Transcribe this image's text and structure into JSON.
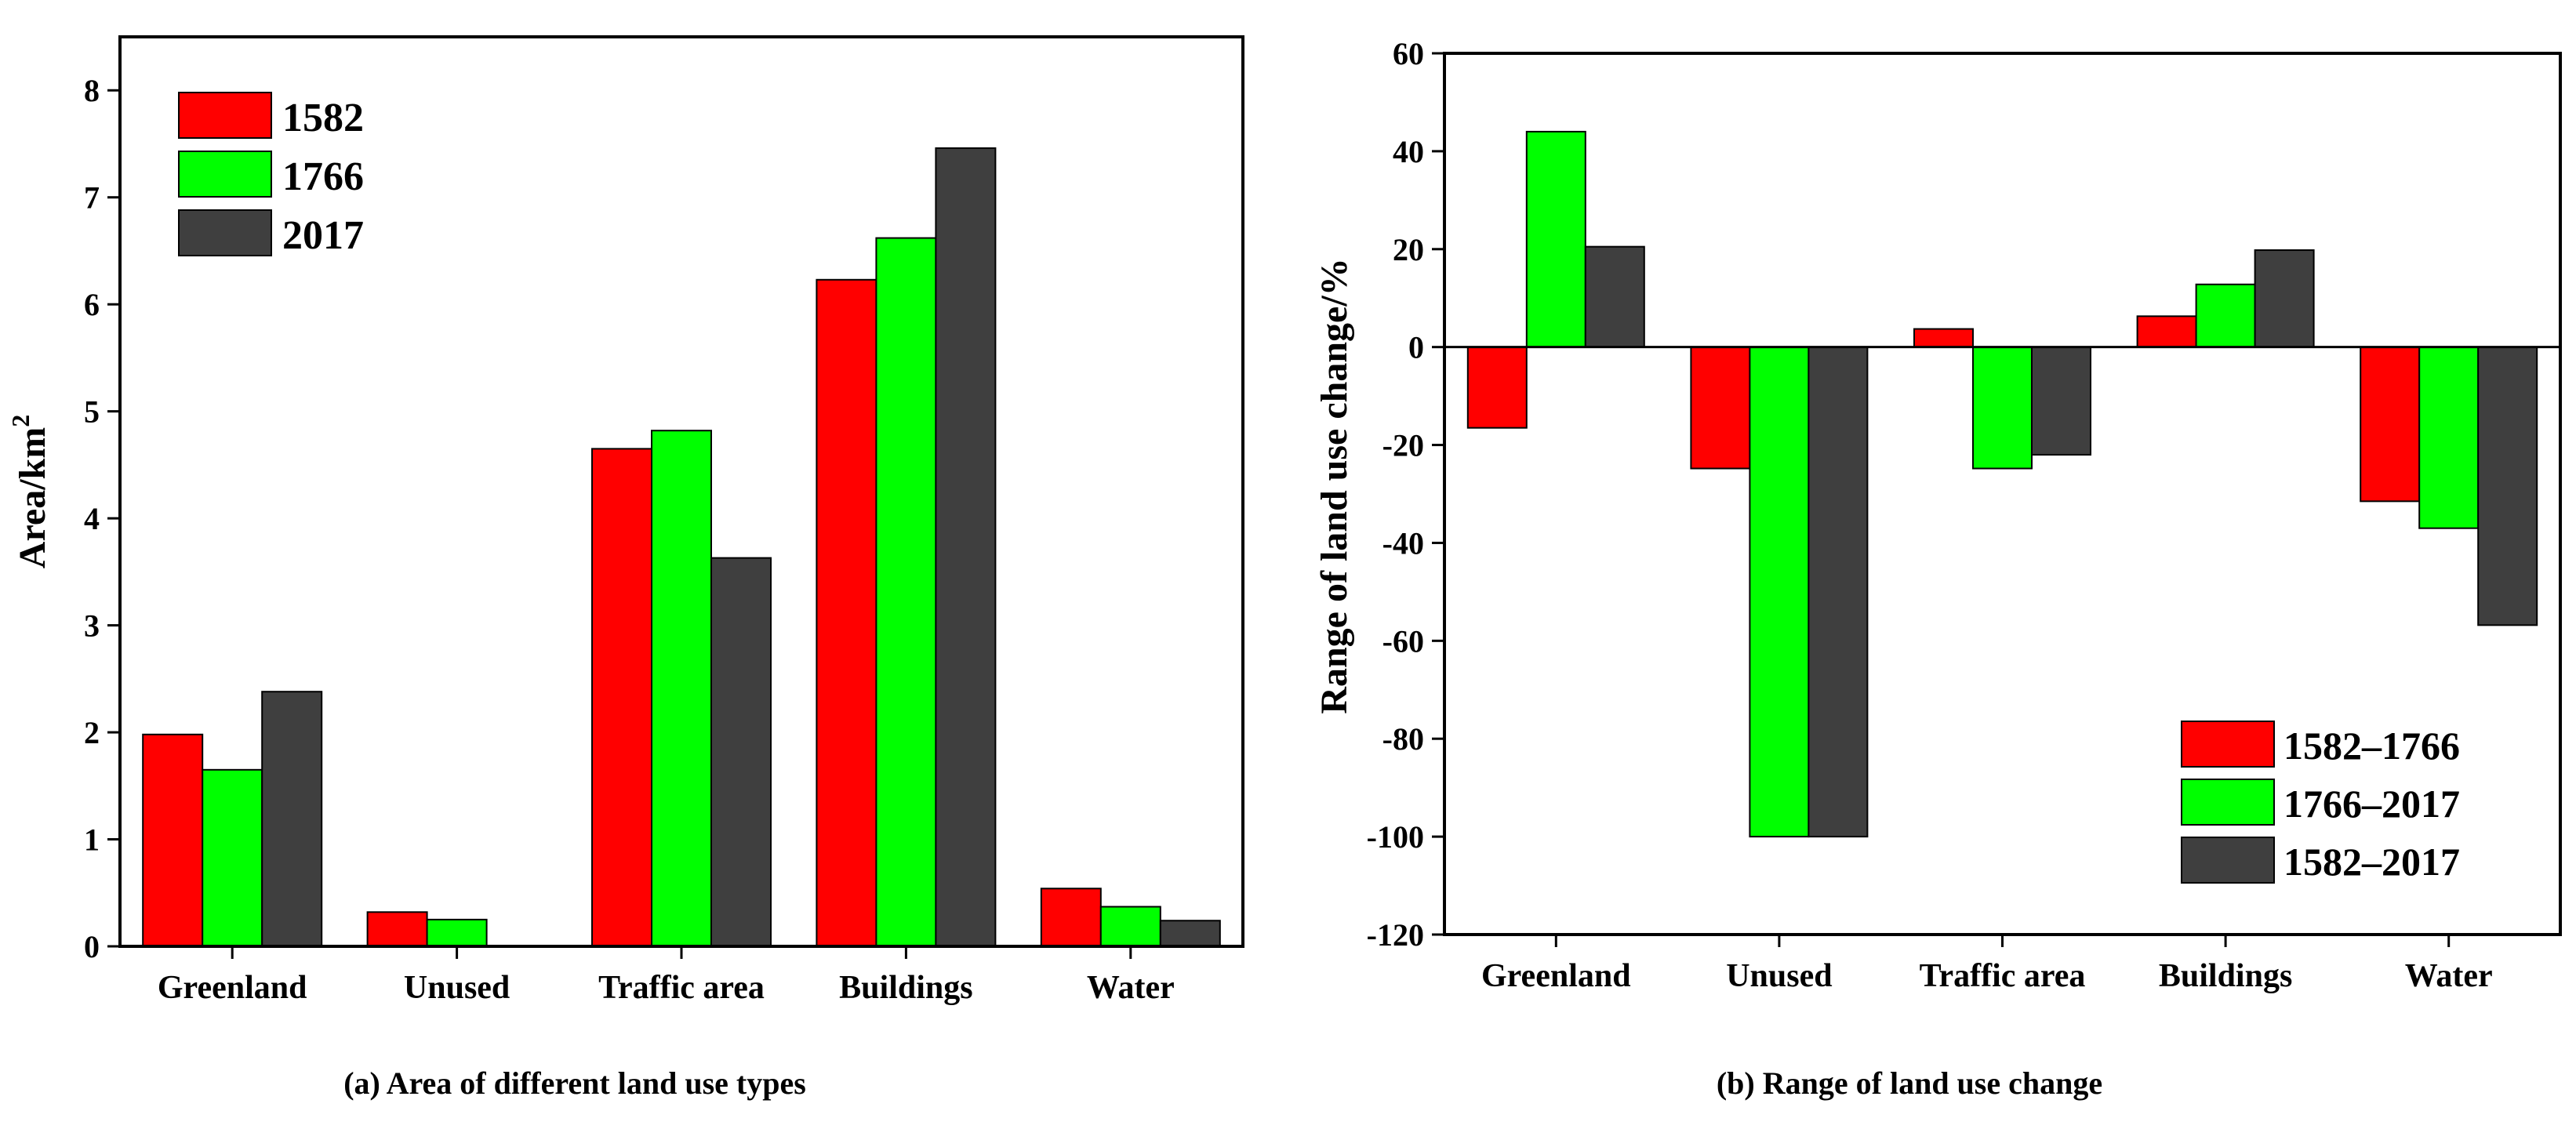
{
  "chart_data": [
    {
      "type": "bar",
      "title": "(a) Area of different land use types",
      "xlabel": "",
      "ylabel": "Area/km",
      "ylabel_superscript": "2",
      "ylim": [
        0,
        8.5
      ],
      "yticks": [
        0,
        1,
        2,
        3,
        4,
        5,
        6,
        7,
        8
      ],
      "categories": [
        "Greenland",
        "Unused",
        "Traffic area",
        "Buildings",
        "Water"
      ],
      "legend_position": "top-left",
      "series": [
        {
          "name": "1582",
          "color": "#ff0000",
          "values": [
            1.98,
            0.32,
            4.65,
            6.23,
            0.54
          ]
        },
        {
          "name": "1766",
          "color": "#00ff00",
          "values": [
            1.65,
            0.25,
            4.82,
            6.62,
            0.37
          ]
        },
        {
          "name": "2017",
          "color": "#3f3f3f",
          "values": [
            2.38,
            0.0,
            3.63,
            7.46,
            0.24
          ]
        }
      ]
    },
    {
      "type": "bar",
      "title": "(b) Range of land use change",
      "xlabel": "",
      "ylabel": "Range of land use change/%",
      "ylim": [
        -120,
        60
      ],
      "yticks": [
        -120,
        -100,
        -80,
        -60,
        -40,
        -20,
        0,
        20,
        40,
        60
      ],
      "categories": [
        "Greenland",
        "Unused",
        "Traffic area",
        "Buildings",
        "Water"
      ],
      "legend_position": "bottom-right",
      "series": [
        {
          "name": "1582–1766",
          "color": "#ff0000",
          "values": [
            -16.5,
            -24.8,
            3.7,
            6.3,
            -31.5
          ]
        },
        {
          "name": "1766–2017",
          "color": "#00ff00",
          "values": [
            44.0,
            -100,
            -24.8,
            12.8,
            -37.0
          ]
        },
        {
          "name": "1582–2017",
          "color": "#3f3f3f",
          "values": [
            20.5,
            -100,
            -22.0,
            19.8,
            -56.8
          ]
        }
      ]
    }
  ]
}
